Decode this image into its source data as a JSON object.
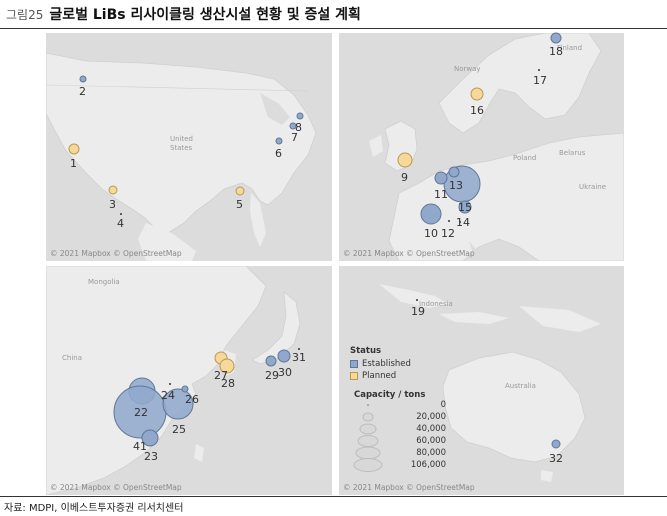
{
  "header": {
    "figure_label": "그림25",
    "title": "글로벌 LiBs 리사이클링 생산시설 현황 및 증설 계획"
  },
  "colors": {
    "established_fill": "#8fa8cc",
    "established_stroke": "#5f7796",
    "planned_fill": "#f6d89a",
    "planned_stroke": "#b89a50",
    "map_bg": "#f4f4f4",
    "land": "#ececec",
    "water": "#dcdcdc"
  },
  "panels": {
    "north_america": {
      "credit": "© 2021 Mapbox © OpenStreetMap",
      "place_names": [
        "United",
        "States"
      ]
    },
    "europe": {
      "credit": "© 2021 Mapbox © OpenStreetMap",
      "place_names": [
        "Norway",
        "Finland",
        "Poland",
        "Belarus",
        "Ukraine"
      ]
    },
    "east_asia": {
      "credit": "© 2021 Mapbox © OpenStreetMap",
      "place_names": [
        "Mongolia",
        "China"
      ]
    },
    "oceania": {
      "credit": "© 2021 Mapbox © OpenStreetMap",
      "place_names": [
        "Indonesia",
        "Australia"
      ]
    }
  },
  "facilities": [
    {
      "id": "1",
      "status": "Planned"
    },
    {
      "id": "2",
      "status": "Established"
    },
    {
      "id": "3",
      "status": "Planned"
    },
    {
      "id": "4",
      "status": "Point"
    },
    {
      "id": "5",
      "status": "Planned"
    },
    {
      "id": "6",
      "status": "Established"
    },
    {
      "id": "7",
      "status": "Established"
    },
    {
      "id": "8",
      "status": "Established"
    },
    {
      "id": "9",
      "status": "Planned"
    },
    {
      "id": "10",
      "status": "Established"
    },
    {
      "id": "11",
      "status": "Established"
    },
    {
      "id": "12",
      "status": "Point"
    },
    {
      "id": "13",
      "status": "Established"
    },
    {
      "id": "14",
      "status": "Point"
    },
    {
      "id": "15",
      "status": "Established"
    },
    {
      "id": "16",
      "status": "Planned"
    },
    {
      "id": "17",
      "status": "Point"
    },
    {
      "id": "18",
      "status": "Established"
    },
    {
      "id": "19",
      "status": "Point"
    },
    {
      "id": "22",
      "status": "Established"
    },
    {
      "id": "23",
      "status": "Established"
    },
    {
      "id": "24",
      "status": "Established"
    },
    {
      "id": "25",
      "status": "Established"
    },
    {
      "id": "26",
      "status": "Established"
    },
    {
      "id": "27",
      "status": "Planned"
    },
    {
      "id": "28",
      "status": "Planned"
    },
    {
      "id": "29",
      "status": "Established"
    },
    {
      "id": "30",
      "status": "Established"
    },
    {
      "id": "31",
      "status": "Point"
    },
    {
      "id": "32",
      "status": "Established"
    },
    {
      "id": "41",
      "status": "Established"
    }
  ],
  "legend": {
    "status_title": "Status",
    "established_label": "Established",
    "planned_label": "Planned",
    "capacity_title": "Capacity / tons",
    "capacity_values": [
      "0",
      "20,000",
      "40,000",
      "60,000",
      "80,000",
      "106,000"
    ]
  },
  "source": "자료: MDPI, 이베스트투자증권 리서치센터"
}
